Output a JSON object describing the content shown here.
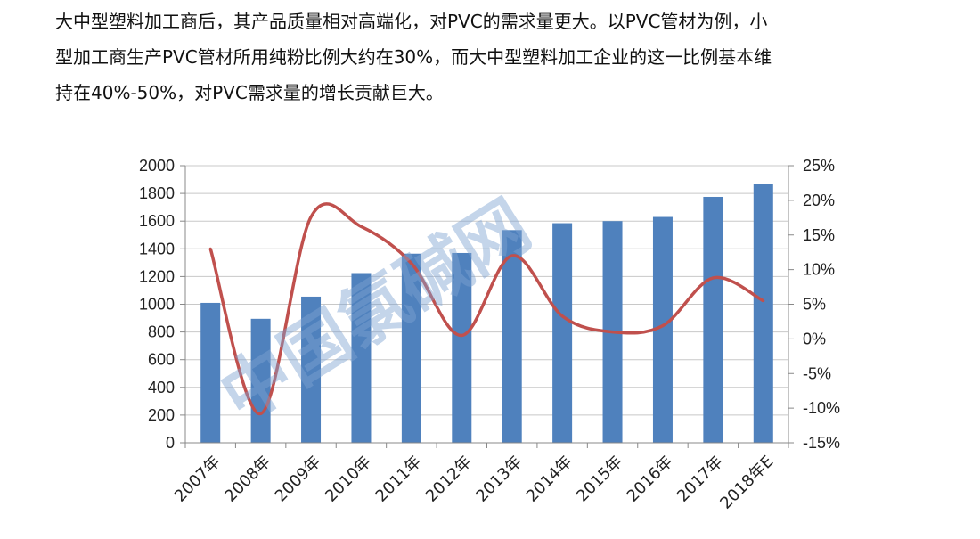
{
  "paragraph": {
    "lines": [
      "大中型塑料加工商后，其产品质量相对高端化，对PVC的需求量更大。以PVC管材为例，小",
      "型加工商生产PVC管材所用纯粉比例大约在30%，而大中型塑料加工企业的这一比例基本维",
      "持在40%-50%，对PVC需求量的增长贡献巨大。"
    ]
  },
  "watermark": "中国氯碱网",
  "colors": {
    "bar": "#4f81bd",
    "line": "#c0504d",
    "grid": "#c8c8c8",
    "axis": "#888888",
    "watermark": "#7ea3d2"
  },
  "chart_data": {
    "type": "bar",
    "categories": [
      "2007年",
      "2008年",
      "2009年",
      "2010年",
      "2011年",
      "2012年",
      "2013年",
      "2014年",
      "2015年",
      "2016年",
      "2017年",
      "2018年E"
    ],
    "series": [
      {
        "type": "bar",
        "axis": "left",
        "values": [
          1010,
          895,
          1055,
          1225,
          1365,
          1370,
          1535,
          1585,
          1600,
          1630,
          1775,
          1865
        ]
      },
      {
        "type": "line",
        "axis": "right",
        "smooth": true,
        "values": [
          13.0,
          -10.8,
          17.6,
          16.2,
          10.9,
          0.5,
          12.0,
          3.3,
          1.0,
          1.9,
          8.8,
          5.5
        ]
      }
    ],
    "y_left": {
      "min": 0,
      "max": 2000,
      "step": 200,
      "tick_labels": [
        "0",
        "200",
        "400",
        "600",
        "800",
        "1000",
        "1200",
        "1400",
        "1600",
        "1800",
        "2000"
      ]
    },
    "y_right": {
      "min": -15,
      "max": 25,
      "step": 5,
      "tick_labels": [
        "-15%",
        "-10%",
        "-5%",
        "0%",
        "5%",
        "10%",
        "15%",
        "20%",
        "25%"
      ]
    },
    "grid": true,
    "legend": "none"
  }
}
